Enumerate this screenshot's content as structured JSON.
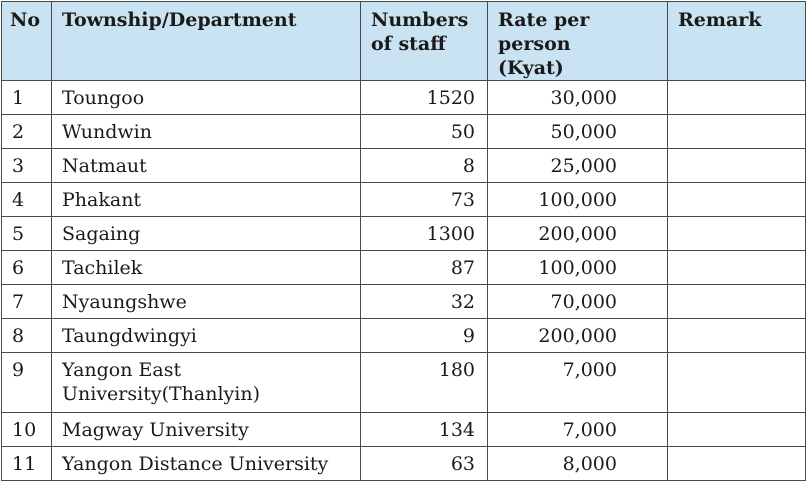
{
  "headers": {
    "no": "No",
    "township": "Township/Department",
    "staff_line1": "Numbers",
    "staff_line2": "of staff",
    "rate_line1": "Rate per person",
    "rate_line2": "(Kyat)",
    "remark": "Remark"
  },
  "rows": [
    {
      "no": "1",
      "township": "Toungoo",
      "staff": "1520",
      "rate": "30,000",
      "remark": ""
    },
    {
      "no": "2",
      "township": "Wundwin",
      "staff": "50",
      "rate": "50,000",
      "remark": ""
    },
    {
      "no": "3",
      "township": "Natmaut",
      "staff": "8",
      "rate": "25,000",
      "remark": ""
    },
    {
      "no": "4",
      "township": "Phakant",
      "staff": "73",
      "rate": "100,000",
      "remark": ""
    },
    {
      "no": "5",
      "township": "Sagaing",
      "staff": "1300",
      "rate": "200,000",
      "remark": ""
    },
    {
      "no": "6",
      "township": "Tachilek",
      "staff": "87",
      "rate": "100,000",
      "remark": ""
    },
    {
      "no": "7",
      "township": "Nyaungshwe",
      "staff": "32",
      "rate": "70,000",
      "remark": ""
    },
    {
      "no": "8",
      "township": "Taungdwingyi",
      "staff": "9",
      "rate": "200,000",
      "remark": ""
    },
    {
      "no": "9",
      "township_line1": "Yangon East",
      "township_line2": "University(Thanlyin)",
      "staff": "180",
      "rate": "7,000",
      "remark": ""
    },
    {
      "no": "10",
      "township": "Magway University",
      "staff": "134",
      "rate": "7,000",
      "remark": ""
    },
    {
      "no": "11",
      "township": "Yangon Distance University",
      "staff": "63",
      "rate": "8,000",
      "remark": ""
    }
  ],
  "colors": {
    "header_bg": "#c9e3f2",
    "border": "#4a4a4a"
  }
}
